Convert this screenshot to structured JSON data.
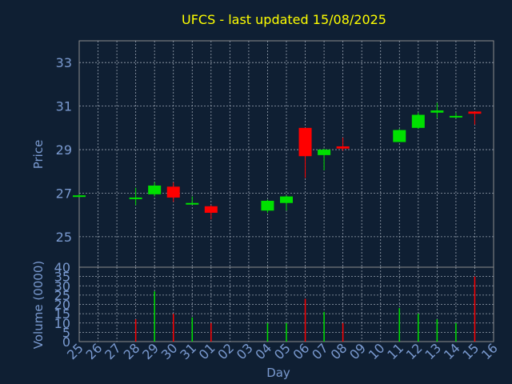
{
  "colors": {
    "background": "#0f1f33",
    "title": "#ffff00",
    "axis_text": "#7a9ad0",
    "frame": "#8c8c8c",
    "grid": "#9aa4b2",
    "up": "#00e000",
    "down": "#ff0000"
  },
  "chart_data": [
    {
      "type": "candlestick",
      "title": "UFCS - last updated 15/08/2025",
      "ylabel": "Price",
      "xlabel": "",
      "ylim": [
        23.6,
        34.0
      ],
      "yticks": [
        25,
        27,
        29,
        31,
        33
      ],
      "grid": true,
      "categories": [
        "25",
        "26",
        "27",
        "28",
        "29",
        "30",
        "31",
        "01",
        "02",
        "03",
        "04",
        "05",
        "06",
        "07",
        "08",
        "09",
        "10",
        "11",
        "12",
        "13",
        "14",
        "15",
        "16"
      ],
      "candles": [
        {
          "day": "25",
          "open": 26.9,
          "close": 26.9,
          "high": 26.95,
          "low": 26.85
        },
        {
          "day": "28",
          "open": 26.8,
          "close": 26.8,
          "high": 27.25,
          "low": 26.45
        },
        {
          "day": "29",
          "open": 26.95,
          "close": 27.35,
          "high": 27.5,
          "low": 26.85
        },
        {
          "day": "30",
          "open": 27.3,
          "close": 26.8,
          "high": 27.5,
          "low": 26.6
        },
        {
          "day": "31",
          "open": 26.5,
          "close": 26.55,
          "high": 26.85,
          "low": 26.5
        },
        {
          "day": "01",
          "open": 26.4,
          "close": 26.1,
          "high": 26.45,
          "low": 25.8
        },
        {
          "day": "04",
          "open": 26.2,
          "close": 26.65,
          "high": 26.7,
          "low": 26.1
        },
        {
          "day": "05",
          "open": 26.55,
          "close": 26.85,
          "high": 26.9,
          "low": 26.2
        },
        {
          "day": "06",
          "open": 30.0,
          "close": 28.7,
          "high": 30.0,
          "low": 27.7
        },
        {
          "day": "07",
          "open": 28.75,
          "close": 29.0,
          "high": 29.05,
          "low": 28.05
        },
        {
          "day": "08",
          "open": 29.15,
          "close": 29.05,
          "high": 29.55,
          "low": 28.95
        },
        {
          "day": "11",
          "open": 29.35,
          "close": 29.9,
          "high": 29.95,
          "low": 29.35
        },
        {
          "day": "12",
          "open": 30.0,
          "close": 30.6,
          "high": 30.7,
          "low": 29.95
        },
        {
          "day": "13",
          "open": 30.7,
          "close": 30.8,
          "high": 31.15,
          "low": 30.45
        },
        {
          "day": "14",
          "open": 30.5,
          "close": 30.55,
          "high": 30.7,
          "low": 30.45
        },
        {
          "day": "15",
          "open": 30.75,
          "close": 30.65,
          "high": 30.75,
          "low": 30.15
        }
      ]
    },
    {
      "type": "bar",
      "ylabel": "Volume (0000)",
      "xlabel": "Day",
      "ylim": [
        0,
        40
      ],
      "yticks": [
        0,
        5,
        10,
        15,
        20,
        25,
        30,
        35,
        40
      ],
      "grid": true,
      "categories": [
        "25",
        "26",
        "27",
        "28",
        "29",
        "30",
        "31",
        "01",
        "02",
        "03",
        "04",
        "05",
        "06",
        "07",
        "08",
        "09",
        "10",
        "11",
        "12",
        "13",
        "14",
        "15",
        "16"
      ],
      "bars": [
        {
          "day": "28",
          "value": 12,
          "direction": "down"
        },
        {
          "day": "29",
          "value": 27,
          "direction": "up"
        },
        {
          "day": "30",
          "value": 15,
          "direction": "down"
        },
        {
          "day": "31",
          "value": 13,
          "direction": "up"
        },
        {
          "day": "01",
          "value": 10,
          "direction": "down"
        },
        {
          "day": "04",
          "value": 10,
          "direction": "up"
        },
        {
          "day": "05",
          "value": 10,
          "direction": "up"
        },
        {
          "day": "06",
          "value": 23,
          "direction": "down"
        },
        {
          "day": "07",
          "value": 16,
          "direction": "up"
        },
        {
          "day": "08",
          "value": 10,
          "direction": "down"
        },
        {
          "day": "11",
          "value": 18,
          "direction": "up"
        },
        {
          "day": "12",
          "value": 15,
          "direction": "up"
        },
        {
          "day": "13",
          "value": 12,
          "direction": "up"
        },
        {
          "day": "14",
          "value": 10,
          "direction": "up"
        },
        {
          "day": "15",
          "value": 35,
          "direction": "down"
        }
      ]
    }
  ]
}
